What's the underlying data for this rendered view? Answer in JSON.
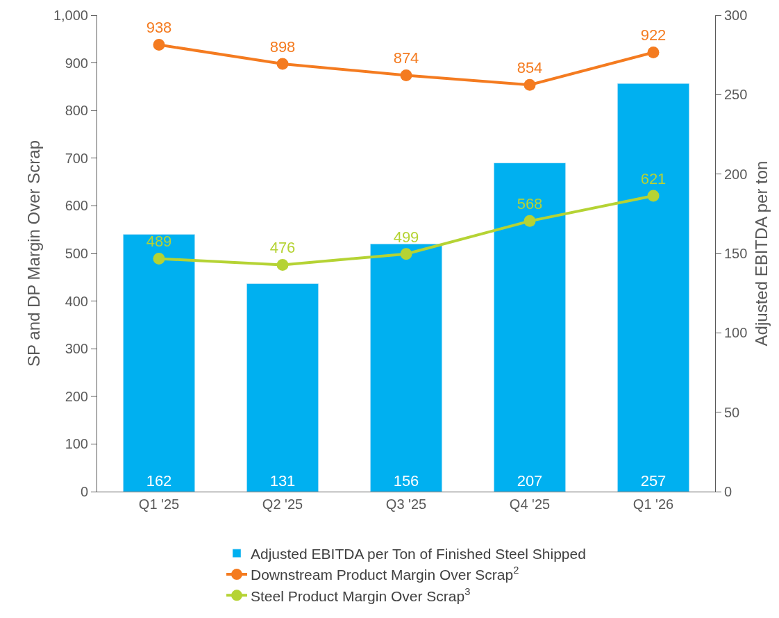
{
  "chart_data": {
    "type": "bar",
    "ylabel": "SP and DP Margin Over Scrap",
    "y2label": "Adjusted EBITDA per ton",
    "categories": [
      "Q1 '25",
      "Q2 '25",
      "Q3 '25",
      "Q4 '25",
      "Q1 '26"
    ],
    "series": [
      {
        "name": "Adjusted EBITDA per Ton of Finished Steel Shipped",
        "axis": "y2",
        "color": "#00b0f0",
        "values": [
          162,
          131,
          156,
          207,
          257
        ]
      },
      {
        "name": "Downstream Product Margin Over Scrap$^{2}$",
        "type": "line",
        "color": "#f47b20",
        "values": [
          938,
          898,
          874,
          854,
          922
        ]
      },
      {
        "name": "Steel Product Margin Over Scrap$^{3}$",
        "type": "line",
        "color": "#b5d334",
        "values": [
          489,
          476,
          499,
          568,
          621
        ]
      }
    ],
    "ylim": [
      0,
      1000
    ],
    "yticks": [
      0,
      100,
      200,
      300,
      400,
      500,
      600,
      700,
      800,
      900,
      {
        "value": 1000,
        "label": "1,000"
      }
    ],
    "y2lim": [
      0,
      300
    ],
    "y2ticks": [
      0,
      50,
      100,
      150,
      200,
      250,
      300
    ],
    "data_labels": true,
    "legend": "bottom",
    "marker": "circle",
    "line_style": "solid"
  }
}
